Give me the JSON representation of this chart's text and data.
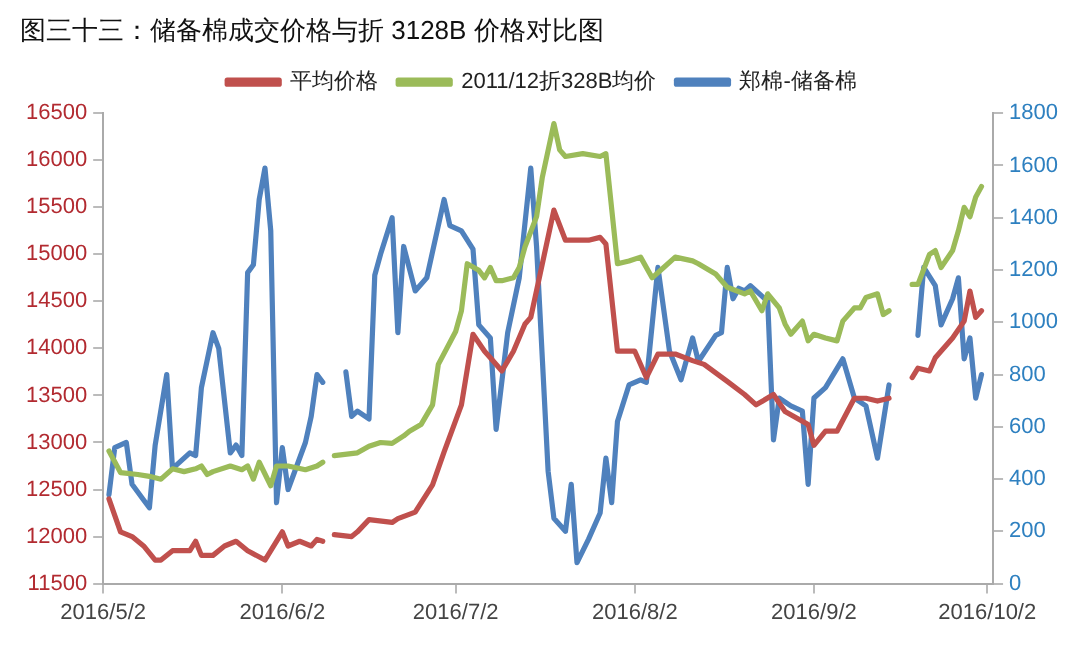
{
  "chart_data": {
    "type": "line",
    "title": "图三十三：储备棉成交价格与折 3128B 价格对比图",
    "legend": "top",
    "grid": false,
    "marker": "none",
    "line_style": "solid",
    "xlim": [
      "2016-05-02",
      "2016-10-03"
    ],
    "xticks": [
      {
        "value": "2016-05-02",
        "label": "2016/5/2"
      },
      {
        "value": "2016-06-02",
        "label": "2016/6/2"
      },
      {
        "value": "2016-07-02",
        "label": "2016/7/2"
      },
      {
        "value": "2016-08-02",
        "label": "2016/8/2"
      },
      {
        "value": "2016-09-02",
        "label": "2016/9/2"
      },
      {
        "value": "2016-10-02",
        "label": "2016/10/2"
      }
    ],
    "ylim": [
      11500,
      16500
    ],
    "yticks": [
      11500,
      12000,
      12500,
      13000,
      13500,
      14000,
      14500,
      15000,
      15500,
      16000,
      16500
    ],
    "y2lim": [
      0,
      1800
    ],
    "y2ticks": [
      0,
      200,
      400,
      600,
      800,
      1000,
      1200,
      1400,
      1600,
      1800
    ],
    "series": [
      {
        "name": "平均价格",
        "color": "#c0504d",
        "x": [
          "2016-05-03",
          "2016-05-05",
          "2016-05-07",
          "2016-05-09",
          "2016-05-11",
          "2016-05-12",
          "2016-05-14",
          "2016-05-17",
          "2016-05-18",
          "2016-05-19",
          "2016-05-21",
          "2016-05-23",
          "2016-05-25",
          "2016-05-27",
          "2016-05-30",
          "2016-06-02",
          "2016-06-03",
          "2016-06-05",
          "2016-06-07",
          "2016-06-08",
          "2016-06-09",
          "2016-06-10",
          "2016-06-11",
          "2016-06-14",
          "2016-06-15",
          "2016-06-17",
          "2016-06-21",
          "2016-06-22",
          "2016-06-25",
          "2016-06-28",
          "2016-06-30",
          "2016-07-03",
          "2016-07-05",
          "2016-07-07",
          "2016-07-08",
          "2016-07-10",
          "2016-07-12",
          "2016-07-14",
          "2016-07-15",
          "2016-07-17",
          "2016-07-19",
          "2016-07-21",
          "2016-07-25",
          "2016-07-27",
          "2016-07-28",
          "2016-07-30",
          "2016-08-02",
          "2016-08-04",
          "2016-08-06",
          "2016-08-09",
          "2016-08-12",
          "2016-08-14",
          "2016-08-18",
          "2016-08-21",
          "2016-08-23",
          "2016-08-26",
          "2016-08-28",
          "2016-08-30",
          "2016-09-01",
          "2016-09-02",
          "2016-09-04",
          "2016-09-06",
          "2016-09-09",
          "2016-09-11",
          "2016-09-13",
          "2016-09-15",
          "2016-09-17",
          "2016-09-19",
          "2016-09-20",
          "2016-09-22",
          "2016-09-23",
          "2016-09-26",
          "2016-09-28",
          "2016-09-29",
          "2016-09-30",
          "2016-10-01"
        ],
        "values": [
          12400,
          12050,
          12000,
          11900,
          11750,
          11750,
          11850,
          11850,
          11950,
          11800,
          11800,
          11900,
          11950,
          11850,
          11750,
          12050,
          11900,
          11950,
          11900,
          11970,
          11950,
          null,
          12020,
          12000,
          12050,
          12180,
          12150,
          12190,
          12260,
          12550,
          12900,
          13400,
          14150,
          13970,
          13900,
          13760,
          13970,
          14260,
          14330,
          14900,
          15470,
          15150,
          15150,
          15180,
          15110,
          13970,
          13970,
          13690,
          13940,
          13940,
          13870,
          13830,
          13650,
          13510,
          13400,
          13510,
          13330,
          13260,
          13190,
          12970,
          13120,
          13120,
          13470,
          13470,
          13440,
          13470,
          null,
          13690,
          13790,
          13760,
          13900,
          14110,
          14290,
          14610,
          14330,
          14400
        ]
      },
      {
        "name": "2011/12折328B均价",
        "color": "#9bbb59",
        "x": [
          "2016-05-03",
          "2016-05-05",
          "2016-05-08",
          "2016-05-10",
          "2016-05-12",
          "2016-05-14",
          "2016-05-16",
          "2016-05-18",
          "2016-05-19",
          "2016-05-20",
          "2016-05-21",
          "2016-05-24",
          "2016-05-26",
          "2016-05-27",
          "2016-05-28",
          "2016-05-29",
          "2016-05-31",
          "2016-06-01",
          "2016-06-03",
          "2016-06-06",
          "2016-06-08",
          "2016-06-09",
          "2016-06-10",
          "2016-06-11",
          "2016-06-15",
          "2016-06-17",
          "2016-06-19",
          "2016-06-21",
          "2016-06-23",
          "2016-06-24",
          "2016-06-26",
          "2016-06-28",
          "2016-06-29",
          "2016-07-02",
          "2016-07-03",
          "2016-07-04",
          "2016-07-06",
          "2016-07-07",
          "2016-07-08",
          "2016-07-09",
          "2016-07-10",
          "2016-07-12",
          "2016-07-13",
          "2016-07-14",
          "2016-07-16",
          "2016-07-17",
          "2016-07-19",
          "2016-07-20",
          "2016-07-21",
          "2016-07-24",
          "2016-07-27",
          "2016-07-28",
          "2016-07-30",
          "2016-08-01",
          "2016-08-03",
          "2016-08-05",
          "2016-08-07",
          "2016-08-09",
          "2016-08-12",
          "2016-08-13",
          "2016-08-16",
          "2016-08-18",
          "2016-08-21",
          "2016-08-22",
          "2016-08-24",
          "2016-08-25",
          "2016-08-27",
          "2016-08-28",
          "2016-08-29",
          "2016-08-31",
          "2016-09-01",
          "2016-09-02",
          "2016-09-04",
          "2016-09-06",
          "2016-09-07",
          "2016-09-09",
          "2016-09-10",
          "2016-09-11",
          "2016-09-13",
          "2016-09-14",
          "2016-09-15",
          "2016-09-17",
          "2016-09-19",
          "2016-09-20",
          "2016-09-22",
          "2016-09-23",
          "2016-09-24",
          "2016-09-26",
          "2016-09-27",
          "2016-09-28",
          "2016-09-29",
          "2016-09-30",
          "2016-10-01"
        ],
        "values": [
          12910,
          12680,
          12660,
          12640,
          12610,
          12720,
          12690,
          12720,
          12750,
          12660,
          12690,
          12750,
          12710,
          12750,
          12610,
          12790,
          12540,
          12750,
          12750,
          12710,
          12750,
          12790,
          null,
          12860,
          12890,
          12960,
          13000,
          12990,
          13070,
          13120,
          13190,
          13400,
          13830,
          14180,
          14400,
          14900,
          14830,
          14750,
          14860,
          14720,
          14720,
          14750,
          14860,
          15080,
          15400,
          15820,
          16390,
          16110,
          16040,
          16070,
          16040,
          16070,
          14900,
          14930,
          14970,
          14750,
          14860,
          14970,
          14930,
          14900,
          14790,
          14650,
          14580,
          14610,
          14400,
          14580,
          14430,
          14260,
          14150,
          14290,
          14080,
          14150,
          14110,
          14080,
          14290,
          14430,
          14430,
          14540,
          14580,
          14360,
          14400,
          null,
          14680,
          14680,
          15000,
          15040,
          14860,
          15040,
          15250,
          15500,
          15400,
          15610,
          15720
        ]
      },
      {
        "name": "郑棉-储备棉",
        "color": "#4f81bd",
        "axis": "y2",
        "x": [
          "2016-05-03",
          "2016-05-04",
          "2016-05-06",
          "2016-05-07",
          "2016-05-09",
          "2016-05-10",
          "2016-05-11",
          "2016-05-13",
          "2016-05-14",
          "2016-05-17",
          "2016-05-18",
          "2016-05-19",
          "2016-05-21",
          "2016-05-22",
          "2016-05-24",
          "2016-05-25",
          "2016-05-26",
          "2016-05-27",
          "2016-05-28",
          "2016-05-29",
          "2016-05-30",
          "2016-05-31",
          "2016-06-01",
          "2016-06-02",
          "2016-06-03",
          "2016-06-06",
          "2016-06-07",
          "2016-06-08",
          "2016-06-09",
          "2016-06-10",
          "2016-06-13",
          "2016-06-14",
          "2016-06-15",
          "2016-06-17",
          "2016-06-18",
          "2016-06-19",
          "2016-06-21",
          "2016-06-22",
          "2016-06-23",
          "2016-06-25",
          "2016-06-27",
          "2016-06-30",
          "2016-07-01",
          "2016-07-03",
          "2016-07-05",
          "2016-07-06",
          "2016-07-08",
          "2016-07-09",
          "2016-07-11",
          "2016-07-13",
          "2016-07-15",
          "2016-07-16",
          "2016-07-18",
          "2016-07-19",
          "2016-07-21",
          "2016-07-22",
          "2016-07-23",
          "2016-07-25",
          "2016-07-27",
          "2016-07-28",
          "2016-07-29",
          "2016-07-30",
          "2016-08-01",
          "2016-08-03",
          "2016-08-04",
          "2016-08-06",
          "2016-08-08",
          "2016-08-10",
          "2016-08-12",
          "2016-08-13",
          "2016-08-16",
          "2016-08-17",
          "2016-08-18",
          "2016-08-19",
          "2016-08-20",
          "2016-08-21",
          "2016-08-22",
          "2016-08-25",
          "2016-08-26",
          "2016-08-27",
          "2016-08-29",
          "2016-08-31",
          "2016-09-01",
          "2016-09-02",
          "2016-09-04",
          "2016-09-07",
          "2016-09-09",
          "2016-09-11",
          "2016-09-13",
          "2016-09-15",
          "2016-09-17",
          "2016-09-20",
          "2016-09-21",
          "2016-09-23",
          "2016-09-24",
          "2016-09-26",
          "2016-09-27",
          "2016-09-28",
          "2016-09-29",
          "2016-09-30",
          "2016-10-01"
        ],
        "values": [
          340,
          520,
          540,
          380,
          320,
          290,
          530,
          800,
          440,
          500,
          490,
          750,
          960,
          900,
          500,
          530,
          490,
          1190,
          1220,
          1470,
          1590,
          1350,
          310,
          520,
          360,
          540,
          640,
          800,
          770,
          null,
          810,
          640,
          660,
          630,
          1180,
          1260,
          1400,
          960,
          1290,
          1120,
          1170,
          1470,
          1370,
          1350,
          1280,
          990,
          940,
          590,
          960,
          1170,
          1590,
          1290,
          430,
          250,
          200,
          380,
          80,
          170,
          270,
          480,
          310,
          620,
          760,
          780,
          770,
          1210,
          890,
          780,
          940,
          850,
          950,
          960,
          1210,
          1090,
          1130,
          1120,
          1140,
          1080,
          550,
          710,
          680,
          660,
          380,
          710,
          750,
          860,
          710,
          680,
          480,
          760,
          null,
          950,
          1210,
          1140,
          990,
          1090,
          1170,
          860,
          940,
          710,
          800
        ]
      }
    ]
  }
}
